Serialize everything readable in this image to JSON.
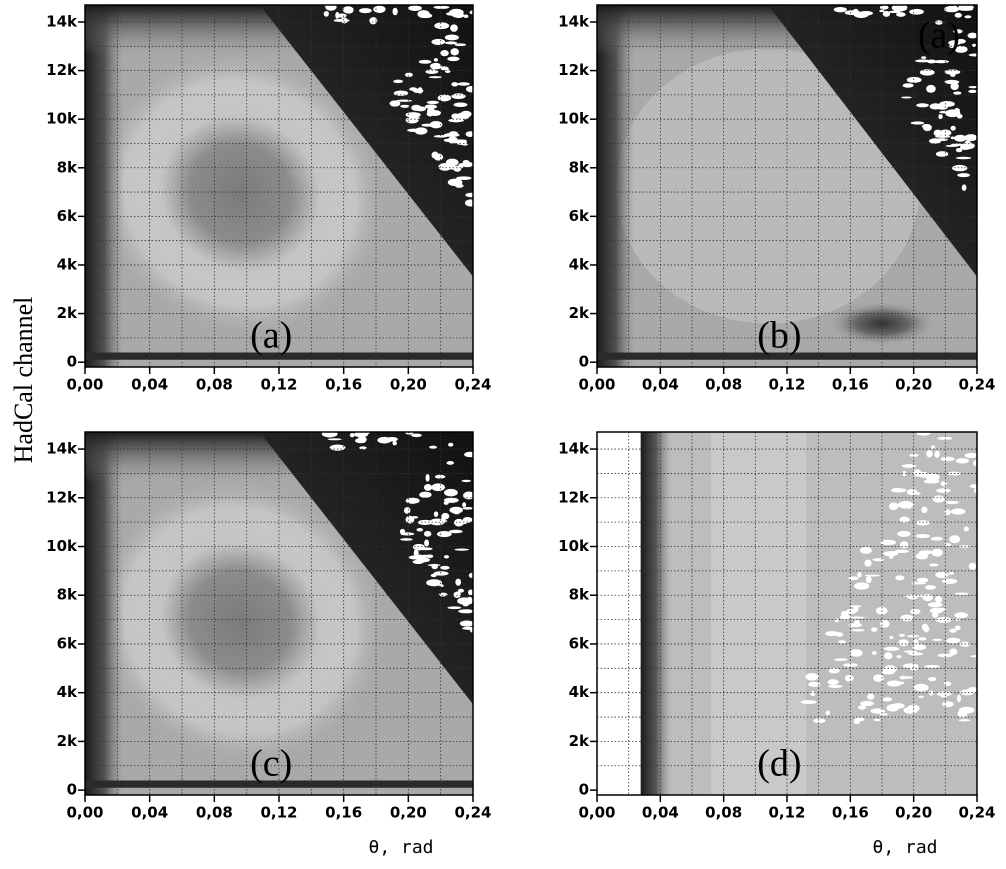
{
  "chart_data": [
    {
      "type": "heatmap",
      "label": "(a)",
      "y_label": "HadCal channel",
      "xlim": [
        0,
        0.24
      ],
      "ylim": [
        -200,
        14700
      ],
      "xticks": [
        {
          "value": 0,
          "label": "0,00"
        },
        {
          "value": 0.04,
          "label": "0,04"
        },
        {
          "value": 0.08,
          "label": "0,08"
        },
        {
          "value": 0.12,
          "label": "0,12"
        },
        {
          "value": 0.16,
          "label": "0,16"
        },
        {
          "value": 0.2,
          "label": "0,20"
        },
        {
          "value": 0.24,
          "label": "0,24"
        }
      ],
      "yticks": [
        0,
        {
          "value": 2000,
          "label": "2k"
        },
        {
          "value": 4000,
          "label": "4k"
        },
        {
          "value": 6000,
          "label": "6k"
        },
        {
          "value": 8000,
          "label": "8k"
        },
        {
          "value": 10000,
          "label": "10k"
        },
        {
          "value": 12000,
          "label": "12k"
        },
        {
          "value": 14000,
          "label": "14k"
        }
      ],
      "xgrid": [
        0.02,
        0.04,
        0.06,
        0.08,
        0.1,
        0.12,
        0.14,
        0.16,
        0.18,
        0.2,
        0.22
      ],
      "ygrid": [
        1000,
        2000,
        3000,
        4000,
        5000,
        6000,
        7000,
        8000,
        9000,
        10000,
        11000,
        12000,
        13000,
        14000
      ],
      "grid": true
    },
    {
      "type": "heatmap",
      "label": "(b)",
      "corner_label": "(a)",
      "xlim": [
        0,
        0.24
      ],
      "ylim": [
        -200,
        14700
      ],
      "xticks": [
        {
          "value": 0,
          "label": "0,00"
        },
        {
          "value": 0.04,
          "label": "0,04"
        },
        {
          "value": 0.08,
          "label": "0,08"
        },
        {
          "value": 0.12,
          "label": "0,12"
        },
        {
          "value": 0.16,
          "label": "0,16"
        },
        {
          "value": 0.2,
          "label": "0,20"
        },
        {
          "value": 0.24,
          "label": "0,24"
        }
      ],
      "yticks": [
        0,
        {
          "value": 2000,
          "label": "2k"
        },
        {
          "value": 4000,
          "label": "4k"
        },
        {
          "value": 6000,
          "label": "6k"
        },
        {
          "value": 8000,
          "label": "8k"
        },
        {
          "value": 10000,
          "label": "10k"
        },
        {
          "value": 12000,
          "label": "12k"
        },
        {
          "value": 14000,
          "label": "14k"
        }
      ],
      "xgrid": [
        0.02,
        0.04,
        0.06,
        0.08,
        0.1,
        0.12,
        0.14,
        0.16,
        0.18,
        0.2,
        0.22
      ],
      "ygrid": [
        1000,
        2000,
        3000,
        4000,
        5000,
        6000,
        7000,
        8000,
        9000,
        10000,
        11000,
        12000,
        13000,
        14000
      ],
      "grid": true
    },
    {
      "type": "heatmap",
      "label": "(c)",
      "x_label": "θ, rad",
      "xlim": [
        0,
        0.24
      ],
      "ylim": [
        -200,
        14700
      ],
      "xticks": [
        {
          "value": 0,
          "label": "0,00"
        },
        {
          "value": 0.04,
          "label": "0,04"
        },
        {
          "value": 0.08,
          "label": "0,08"
        },
        {
          "value": 0.12,
          "label": "0,12"
        },
        {
          "value": 0.16,
          "label": "0,16"
        },
        {
          "value": 0.2,
          "label": "0,20"
        },
        {
          "value": 0.24,
          "label": "0,24"
        }
      ],
      "yticks": [
        0,
        {
          "value": 2000,
          "label": "2k"
        },
        {
          "value": 4000,
          "label": "4k"
        },
        {
          "value": 6000,
          "label": "6k"
        },
        {
          "value": 8000,
          "label": "8k"
        },
        {
          "value": 10000,
          "label": "10k"
        },
        {
          "value": 12000,
          "label": "12k"
        },
        {
          "value": 14000,
          "label": "14k"
        }
      ],
      "xgrid": [
        0.02,
        0.04,
        0.06,
        0.08,
        0.1,
        0.12,
        0.14,
        0.16,
        0.18,
        0.2,
        0.22
      ],
      "ygrid": [
        1000,
        2000,
        3000,
        4000,
        5000,
        6000,
        7000,
        8000,
        9000,
        10000,
        11000,
        12000,
        13000,
        14000
      ],
      "grid": true
    },
    {
      "type": "heatmap",
      "label": "(d)",
      "x_label": "θ, rad",
      "xlim": [
        0,
        0.24
      ],
      "ylim": [
        -200,
        14700
      ],
      "xticks": [
        {
          "value": 0,
          "label": "0,00"
        },
        {
          "value": 0.04,
          "label": "0,04"
        },
        {
          "value": 0.08,
          "label": "0,08"
        },
        {
          "value": 0.12,
          "label": "0,12"
        },
        {
          "value": 0.16,
          "label": "0,16"
        },
        {
          "value": 0.2,
          "label": "0,20"
        },
        {
          "value": 0.24,
          "label": "0,24"
        }
      ],
      "yticks": [
        0,
        {
          "value": 2000,
          "label": "2k"
        },
        {
          "value": 4000,
          "label": "4k"
        },
        {
          "value": 6000,
          "label": "6k"
        },
        {
          "value": 8000,
          "label": "8k"
        },
        {
          "value": 10000,
          "label": "10k"
        },
        {
          "value": 12000,
          "label": "12k"
        },
        {
          "value": 14000,
          "label": "14k"
        }
      ],
      "xgrid": [
        0.02,
        0.04,
        0.06,
        0.08,
        0.1,
        0.12,
        0.14,
        0.16,
        0.18,
        0.2,
        0.22
      ],
      "ygrid": [
        1000,
        2000,
        3000,
        4000,
        5000,
        6000,
        7000,
        8000,
        9000,
        10000,
        11000,
        12000,
        13000,
        14000
      ],
      "grid": true
    }
  ]
}
